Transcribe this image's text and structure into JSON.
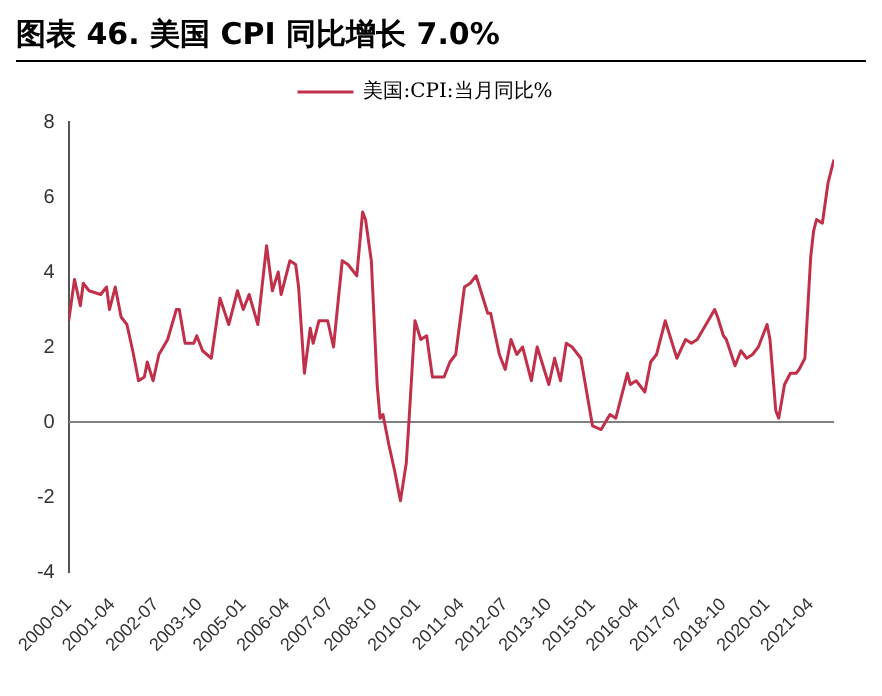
{
  "chart_data": {
    "type": "line",
    "title": "图表 46. 美国 CPI 同比增长 7.0%",
    "x": [
      "2000-01",
      "2000-03",
      "2000-05",
      "2000-06",
      "2000-08",
      "2000-12",
      "2001-02",
      "2001-03",
      "2001-05",
      "2001-07",
      "2001-09",
      "2001-11",
      "2002-01",
      "2002-03",
      "2002-04",
      "2002-06",
      "2002-08",
      "2002-11",
      "2003-02",
      "2003-03",
      "2003-05",
      "2003-08",
      "2003-09",
      "2003-11",
      "2004-02",
      "2004-05",
      "2004-08",
      "2004-11",
      "2005-01",
      "2005-03",
      "2005-06",
      "2005-09",
      "2005-11",
      "2006-01",
      "2006-02",
      "2006-05",
      "2006-07",
      "2006-08",
      "2006-10",
      "2006-12",
      "2007-01",
      "2007-03",
      "2007-06",
      "2007-08",
      "2007-11",
      "2008-01",
      "2008-04",
      "2008-06",
      "2008-07",
      "2008-09",
      "2008-11",
      "2008-12",
      "2009-01",
      "2009-03",
      "2009-05",
      "2009-07",
      "2009-09",
      "2009-10",
      "2009-12",
      "2010-02",
      "2010-04",
      "2010-06",
      "2010-10",
      "2010-12",
      "2011-02",
      "2011-05",
      "2011-07",
      "2011-09",
      "2011-11",
      "2012-01",
      "2012-02",
      "2012-05",
      "2012-07",
      "2012-09",
      "2012-11",
      "2013-01",
      "2013-04",
      "2013-06",
      "2013-10",
      "2013-12",
      "2014-02",
      "2014-04",
      "2014-06",
      "2014-09",
      "2015-01",
      "2015-04",
      "2015-07",
      "2015-09",
      "2016-01",
      "2016-02",
      "2016-04",
      "2016-07",
      "2016-09",
      "2016-11",
      "2017-02",
      "2017-04",
      "2017-06",
      "2017-09",
      "2017-11",
      "2018-01",
      "2018-04",
      "2018-07",
      "2018-08",
      "2018-10",
      "2018-11",
      "2019-02",
      "2019-04",
      "2019-06",
      "2019-08",
      "2019-10",
      "2020-01",
      "2020-02",
      "2020-04",
      "2020-05",
      "2020-07",
      "2020-09",
      "2020-11",
      "2020-12",
      "2021-02",
      "2021-04",
      "2021-05",
      "2021-06",
      "2021-08",
      "2021-10",
      "2021-12"
    ],
    "series": [
      {
        "name": "美国:CPI:当月同比%",
        "color": "#c0304a",
        "values": [
          2.7,
          3.8,
          3.1,
          3.7,
          3.5,
          3.4,
          3.6,
          3.0,
          3.6,
          2.8,
          2.6,
          1.9,
          1.1,
          1.2,
          1.6,
          1.1,
          1.8,
          2.2,
          3.0,
          3.0,
          2.1,
          2.1,
          2.3,
          1.9,
          1.7,
          3.3,
          2.6,
          3.5,
          3.0,
          3.4,
          2.6,
          4.7,
          3.5,
          4.0,
          3.4,
          4.3,
          4.2,
          3.6,
          1.3,
          2.5,
          2.1,
          2.7,
          2.7,
          2.0,
          4.3,
          4.2,
          3.9,
          5.6,
          5.4,
          4.3,
          1.0,
          0.1,
          0.2,
          -0.6,
          -1.3,
          -2.1,
          -1.1,
          0.1,
          2.7,
          2.2,
          2.3,
          1.2,
          1.2,
          1.6,
          1.8,
          3.6,
          3.7,
          3.9,
          3.4,
          2.9,
          2.9,
          1.8,
          1.4,
          2.2,
          1.8,
          2.0,
          1.1,
          2.0,
          1.0,
          1.7,
          1.1,
          2.1,
          2.0,
          1.7,
          -0.1,
          -0.2,
          0.2,
          0.1,
          1.3,
          1.0,
          1.1,
          0.8,
          1.6,
          1.8,
          2.7,
          2.2,
          1.7,
          2.2,
          2.1,
          2.2,
          2.6,
          3.0,
          2.8,
          2.3,
          2.2,
          1.5,
          1.9,
          1.7,
          1.8,
          2.0,
          2.6,
          2.2,
          0.3,
          0.1,
          1.0,
          1.3,
          1.3,
          1.4,
          1.7,
          4.4,
          5.1,
          5.4,
          5.3,
          6.4,
          7.0
        ]
      }
    ],
    "xlim": [
      "2000-01",
      "2021-12"
    ],
    "xticks": [
      "2000-01",
      "2001-04",
      "2002-07",
      "2003-10",
      "2005-01",
      "2006-04",
      "2007-07",
      "2008-10",
      "2010-01",
      "2011-04",
      "2012-07",
      "2013-10",
      "2015-01",
      "2016-04",
      "2017-07",
      "2018-10",
      "2020-01",
      "2021-04"
    ],
    "ylim": [
      -4,
      8
    ],
    "yticks": [
      -4,
      -2,
      0,
      2,
      4,
      6,
      8
    ],
    "ref_lines": [
      {
        "axis": "y",
        "value": 0,
        "color": "#808080"
      }
    ],
    "legend": "top",
    "marker": "none",
    "line_style": "solid"
  }
}
